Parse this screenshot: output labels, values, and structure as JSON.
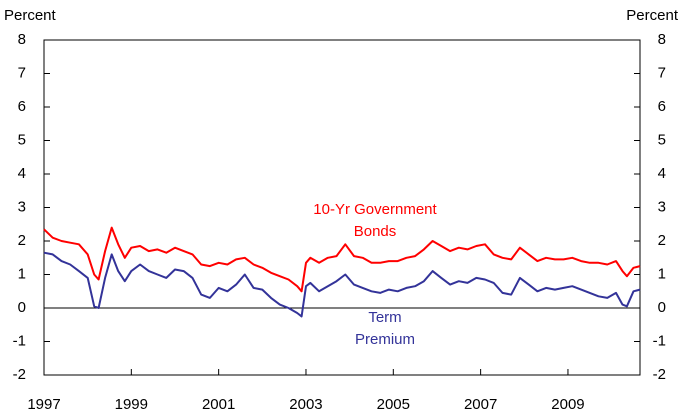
{
  "chart_data": {
    "type": "line",
    "y_label": "Percent",
    "y2_label": "Percent",
    "annotations": [
      {
        "lines": [
          "10-Yr Government",
          "Bonds"
        ],
        "color": "#ff0000"
      },
      {
        "lines": [
          "Term",
          "Premium"
        ],
        "color": "#333399"
      }
    ],
    "x": [
      1997.0,
      1997.2,
      1997.4,
      1997.6,
      1997.8,
      1998.0,
      1998.15,
      1998.25,
      1998.4,
      1998.55,
      1998.7,
      1998.85,
      1999.0,
      1999.2,
      1999.4,
      1999.6,
      1999.8,
      2000.0,
      2000.2,
      2000.4,
      2000.6,
      2000.8,
      2001.0,
      2001.2,
      2001.4,
      2001.6,
      2001.8,
      2002.0,
      2002.2,
      2002.4,
      2002.6,
      2002.8,
      2002.9,
      2003.0,
      2003.1,
      2003.3,
      2003.5,
      2003.7,
      2003.9,
      2004.1,
      2004.3,
      2004.5,
      2004.7,
      2004.9,
      2005.1,
      2005.3,
      2005.5,
      2005.7,
      2005.9,
      2006.1,
      2006.3,
      2006.5,
      2006.7,
      2006.9,
      2007.1,
      2007.3,
      2007.5,
      2007.7,
      2007.9,
      2008.1,
      2008.3,
      2008.5,
      2008.7,
      2008.9,
      2009.1,
      2009.3,
      2009.5,
      2009.7,
      2009.9,
      2010.1,
      2010.25,
      2010.35,
      2010.5,
      2010.65
    ],
    "series": [
      {
        "name": "10-Yr Government Bonds",
        "color": "#ff0000",
        "values": [
          2.35,
          2.1,
          2.0,
          1.95,
          1.9,
          1.6,
          1.0,
          0.85,
          1.7,
          2.4,
          1.9,
          1.5,
          1.8,
          1.85,
          1.7,
          1.75,
          1.65,
          1.8,
          1.7,
          1.6,
          1.3,
          1.25,
          1.35,
          1.3,
          1.45,
          1.5,
          1.3,
          1.2,
          1.05,
          0.95,
          0.85,
          0.65,
          0.5,
          1.35,
          1.5,
          1.35,
          1.5,
          1.55,
          1.9,
          1.55,
          1.5,
          1.35,
          1.35,
          1.4,
          1.4,
          1.5,
          1.55,
          1.75,
          2.0,
          1.85,
          1.7,
          1.8,
          1.75,
          1.85,
          1.9,
          1.6,
          1.5,
          1.45,
          1.8,
          1.6,
          1.4,
          1.5,
          1.45,
          1.45,
          1.5,
          1.4,
          1.35,
          1.35,
          1.3,
          1.4,
          1.1,
          0.95,
          1.2,
          1.25
        ]
      },
      {
        "name": "Term Premium",
        "color": "#333399",
        "values": [
          1.65,
          1.6,
          1.4,
          1.3,
          1.1,
          0.9,
          0.05,
          0.0,
          0.9,
          1.6,
          1.1,
          0.8,
          1.1,
          1.3,
          1.1,
          1.0,
          0.9,
          1.15,
          1.1,
          0.9,
          0.4,
          0.3,
          0.6,
          0.5,
          0.7,
          1.0,
          0.6,
          0.55,
          0.3,
          0.1,
          0.0,
          -0.15,
          -0.25,
          0.65,
          0.75,
          0.5,
          0.65,
          0.8,
          1.0,
          0.7,
          0.6,
          0.5,
          0.45,
          0.55,
          0.5,
          0.6,
          0.65,
          0.8,
          1.1,
          0.9,
          0.7,
          0.8,
          0.75,
          0.9,
          0.85,
          0.75,
          0.45,
          0.4,
          0.9,
          0.7,
          0.5,
          0.6,
          0.55,
          0.6,
          0.65,
          0.55,
          0.45,
          0.35,
          0.3,
          0.45,
          0.1,
          0.05,
          0.5,
          0.55
        ]
      }
    ],
    "xlim": [
      1997,
      2010.65
    ],
    "xticks": [
      1997,
      1999,
      2001,
      2003,
      2005,
      2007,
      2009
    ],
    "ylim": [
      -2,
      8
    ],
    "yticks": [
      -2,
      -1,
      0,
      1,
      2,
      3,
      4,
      5,
      6,
      7,
      8
    ],
    "y2lim": [
      -2,
      8
    ],
    "y2ticks": [
      -2,
      -1,
      0,
      1,
      2,
      3,
      4,
      5,
      6,
      7,
      8
    ],
    "zero_line": true
  }
}
